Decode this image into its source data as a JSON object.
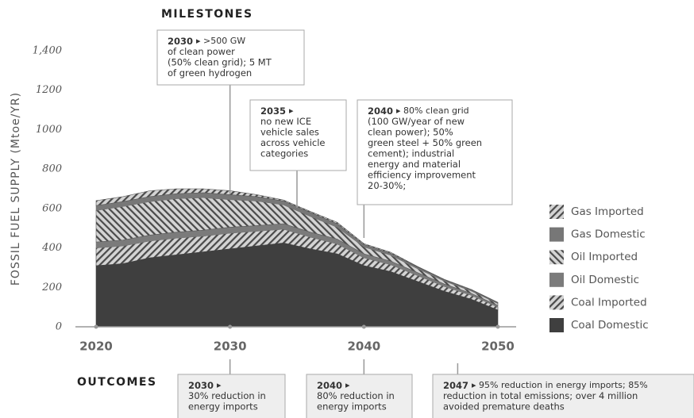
{
  "chart_data": {
    "type": "stacked_area",
    "y_label": "FOSSIL FUEL SUPPLY (Mtoe/YR)",
    "x": [
      2020,
      2022,
      2024,
      2026,
      2028,
      2030,
      2032,
      2034,
      2036,
      2038,
      2040,
      2042,
      2044,
      2046,
      2048,
      2050
    ],
    "xlim": [
      2020,
      2050
    ],
    "xticks": [
      2020,
      2030,
      2040,
      2050
    ],
    "ylim": [
      0,
      1400
    ],
    "yticks": [
      0,
      200,
      400,
      600,
      800,
      1000,
      1200,
      {
        "value": 1400,
        "label": "1,400"
      }
    ],
    "series": [
      {
        "name": "Coal Domestic",
        "color": "#3f3f3f",
        "pattern": "solid",
        "values": [
          310,
          320,
          350,
          365,
          380,
          395,
          410,
          425,
          395,
          370,
          310,
          280,
          230,
          180,
          140,
          85
        ]
      },
      {
        "name": "Coal Imported",
        "color": "#3f3f3f",
        "pattern": "hatch-right",
        "values": [
          90,
          90,
          85,
          85,
          80,
          80,
          75,
          70,
          60,
          50,
          40,
          35,
          30,
          25,
          20,
          15
        ]
      },
      {
        "name": "Oil Domestic",
        "color": "#7b7b7b",
        "pattern": "solid",
        "values": [
          30,
          30,
          30,
          30,
          30,
          30,
          28,
          28,
          25,
          25,
          20,
          18,
          15,
          12,
          10,
          8
        ]
      },
      {
        "name": "Oil Imported",
        "color": "#555555",
        "pattern": "hatch-left",
        "values": [
          160,
          170,
          170,
          170,
          165,
          140,
          125,
          95,
          80,
          60,
          35,
          30,
          20,
          15,
          12,
          10
        ]
      },
      {
        "name": "Gas Domestic",
        "color": "#777777",
        "pattern": "solid",
        "values": [
          25,
          25,
          25,
          25,
          25,
          25,
          22,
          20,
          20,
          18,
          12,
          10,
          8,
          6,
          5,
          4
        ]
      },
      {
        "name": "Gas Imported",
        "color": "#555555",
        "pattern": "hatch-right",
        "values": [
          25,
          25,
          30,
          25,
          20,
          20,
          10,
          5,
          5,
          7,
          5,
          5,
          3,
          3,
          3,
          2
        ]
      }
    ],
    "milestones_title": "MILESTONES",
    "milestones": [
      {
        "year": "2030",
        "lines": [
          "▸ >500 GW",
          "of clean power",
          "(50% clean grid); 5 MT",
          "of green hydrogen"
        ]
      },
      {
        "year": "2035",
        "lines": [
          "▸",
          "no new ICE",
          "vehicle sales",
          "across vehicle",
          "categories"
        ]
      },
      {
        "year": "2040",
        "lines": [
          "▸ 80% clean grid",
          "(100 GW/year of new",
          "clean power); 50%",
          "green steel + 50% green",
          "cement); industrial",
          "energy and material",
          "efficiency improvement",
          "20-30%;"
        ]
      }
    ],
    "outcomes_title": "OUTCOMES",
    "outcomes": [
      {
        "year": "2030",
        "lines": [
          "▸",
          "30% reduction in",
          "energy imports"
        ]
      },
      {
        "year": "2040",
        "lines": [
          "▸",
          "80% reduction in",
          "energy imports"
        ]
      },
      {
        "year": "2047",
        "lines": [
          "▸ 95% reduction in energy imports; 85%",
          "reduction in total emissions; over 4 million",
          "avoided premature deaths"
        ]
      }
    ]
  }
}
